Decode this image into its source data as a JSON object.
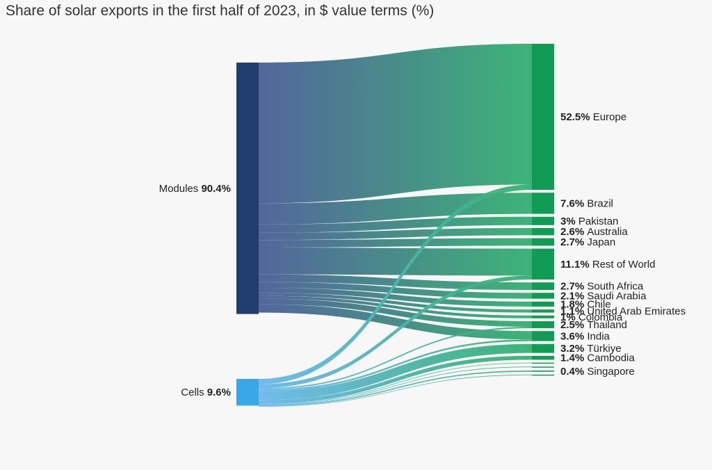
{
  "chart_data": {
    "type": "sankey",
    "title": "Share of solar exports in the first half of 2023, in $ value terms (%)",
    "unit": "%",
    "colors": {
      "modules": "#213e6e",
      "cells": "#39a6e8",
      "destination": "#119b55",
      "modules_link_start": "#4a5e96",
      "cells_link_start": "#6ab8ec",
      "link_end": "#33b070"
    },
    "sources": [
      {
        "id": "modules",
        "label": "Modules",
        "value_text": "90.4%",
        "value": 90.4
      },
      {
        "id": "cells",
        "label": "Cells",
        "value_text": "9.6%",
        "value": 9.6
      }
    ],
    "destinations": [
      {
        "label": "Europe",
        "value_text": "52.5%",
        "value": 52.5,
        "modules": 50.6,
        "cells": 1.9
      },
      {
        "label": "Brazil",
        "value_text": "7.6%",
        "value": 7.6,
        "modules": 7.6,
        "cells": 0
      },
      {
        "label": "Pakistan",
        "value_text": "3%",
        "value": 3.0,
        "modules": 3.0,
        "cells": 0
      },
      {
        "label": "Australia",
        "value_text": "2.6%",
        "value": 2.6,
        "modules": 2.6,
        "cells": 0
      },
      {
        "label": "Japan",
        "value_text": "2.7%",
        "value": 2.7,
        "modules": 2.7,
        "cells": 0
      },
      {
        "label": "Rest of World",
        "value_text": "11.1%",
        "value": 11.1,
        "modules": 9.7,
        "cells": 1.4
      },
      {
        "label": "South Africa",
        "value_text": "2.7%",
        "value": 2.7,
        "modules": 2.7,
        "cells": 0
      },
      {
        "label": "Saudi Arabia",
        "value_text": "2.1%",
        "value": 2.1,
        "modules": 2.1,
        "cells": 0
      },
      {
        "label": "Chile",
        "value_text": "1.8%",
        "value": 1.8,
        "modules": 1.8,
        "cells": 0
      },
      {
        "label": "United Arab Emirates",
        "value_text": "1.1%",
        "value": 1.1,
        "modules": 1.1,
        "cells": 0
      },
      {
        "label": "Colombia",
        "value_text": "1%",
        "value": 1.0,
        "modules": 1.0,
        "cells": 0
      },
      {
        "label": "Thailand",
        "value_text": "2.5%",
        "value": 2.5,
        "modules": 2.0,
        "cells": 0.5
      },
      {
        "label": "India",
        "value_text": "3.6%",
        "value": 3.6,
        "modules": 3.0,
        "cells": 0.6
      },
      {
        "label": "Türkiye",
        "value_text": "3.2%",
        "value": 3.2,
        "modules": 0,
        "cells": 3.2
      },
      {
        "label": "Cambodia",
        "value_text": "1.4%",
        "value": 1.4,
        "modules": 0,
        "cells": 1.4
      },
      {
        "label": "",
        "value_text": "",
        "value": 0.2,
        "modules": 0,
        "cells": 0.2
      },
      {
        "label": "",
        "value_text": "",
        "value": 0.2,
        "modules": 0,
        "cells": 0.2
      },
      {
        "label": "Singapore",
        "value_text": "0.4%",
        "value": 0.4,
        "modules": 0,
        "cells": 0.4
      },
      {
        "label": "",
        "value_text": "",
        "value": 0.1,
        "modules": 0,
        "cells": 0.1
      }
    ]
  }
}
